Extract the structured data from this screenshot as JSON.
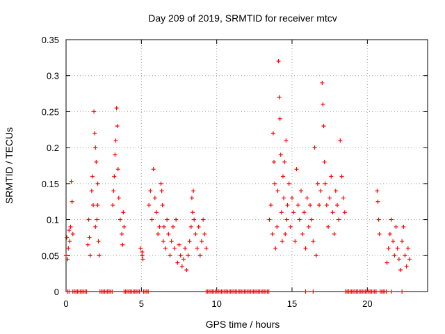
{
  "chart_data": {
    "type": "scatter",
    "title": "Day 209 of 2019, SRMTID for receiver mtcv",
    "xlabel": "GPS time / hours",
    "ylabel": "SRMTID / TECUs",
    "xlim": [
      0,
      24
    ],
    "ylim": [
      0,
      0.35
    ],
    "x_ticks": [
      0,
      5,
      10,
      15,
      20
    ],
    "y_ticks": [
      0,
      0.05,
      0.1,
      0.15,
      0.2,
      0.25,
      0.3,
      0.35
    ],
    "grid": "dotted",
    "marker": "+",
    "color": "#ff0000",
    "series": [
      {
        "name": "mtcv",
        "points": [
          [
            0.0,
            0.05
          ],
          [
            0.05,
            0.075
          ],
          [
            0.1,
            0.045
          ],
          [
            0.15,
            0.06
          ],
          [
            0.2,
            0.085
          ],
          [
            0.25,
            0.07
          ],
          [
            0.3,
            0.09
          ],
          [
            0.35,
            0.153
          ],
          [
            0.4,
            0.125
          ],
          [
            0.45,
            0.08
          ],
          [
            1.45,
            0.065
          ],
          [
            1.5,
            0.1
          ],
          [
            1.55,
            0.075
          ],
          [
            1.6,
            0.05
          ],
          [
            1.7,
            0.14
          ],
          [
            1.75,
            0.16
          ],
          [
            1.8,
            0.12
          ],
          [
            1.85,
            0.25
          ],
          [
            1.9,
            0.22
          ],
          [
            1.95,
            0.2
          ],
          [
            2.0,
            0.18
          ],
          [
            2.05,
            0.1
          ],
          [
            2.1,
            0.15
          ],
          [
            2.15,
            0.07
          ],
          [
            2.2,
            0.05
          ],
          [
            2.1,
            0.12
          ],
          [
            1.95,
            0.09
          ],
          [
            3.1,
            0.12
          ],
          [
            3.15,
            0.14
          ],
          [
            3.2,
            0.16
          ],
          [
            3.25,
            0.19
          ],
          [
            3.3,
            0.21
          ],
          [
            3.35,
            0.255
          ],
          [
            3.4,
            0.23
          ],
          [
            3.45,
            0.17
          ],
          [
            3.5,
            0.13
          ],
          [
            3.6,
            0.1
          ],
          [
            3.7,
            0.08
          ],
          [
            3.75,
            0.065
          ],
          [
            3.8,
            0.11
          ],
          [
            3.85,
            0.09
          ],
          [
            4.95,
            0.06
          ],
          [
            5.05,
            0.05
          ],
          [
            5.1,
            0.045
          ],
          [
            5.05,
            0.055
          ],
          [
            5.5,
            0.12
          ],
          [
            5.6,
            0.14
          ],
          [
            5.7,
            0.1
          ],
          [
            5.8,
            0.17
          ],
          [
            5.9,
            0.13
          ],
          [
            6.0,
            0.11
          ],
          [
            6.1,
            0.08
          ],
          [
            6.2,
            0.09
          ],
          [
            6.3,
            0.15
          ],
          [
            6.35,
            0.14
          ],
          [
            6.4,
            0.12
          ],
          [
            6.45,
            0.07
          ],
          [
            6.5,
            0.09
          ],
          [
            6.6,
            0.06
          ],
          [
            6.7,
            0.1
          ],
          [
            6.8,
            0.08
          ],
          [
            6.9,
            0.05
          ],
          [
            7.0,
            0.07
          ],
          [
            7.1,
            0.09
          ],
          [
            7.2,
            0.06
          ],
          [
            7.3,
            0.1
          ],
          [
            7.4,
            0.04
          ],
          [
            7.5,
            0.065
          ],
          [
            7.6,
            0.05
          ],
          [
            7.7,
            0.035
          ],
          [
            7.8,
            0.045
          ],
          [
            7.9,
            0.06
          ],
          [
            8.0,
            0.03
          ],
          [
            8.1,
            0.05
          ],
          [
            8.2,
            0.07
          ],
          [
            8.3,
            0.09
          ],
          [
            8.35,
            0.13
          ],
          [
            8.4,
            0.11
          ],
          [
            8.45,
            0.14
          ],
          [
            8.5,
            0.1
          ],
          [
            8.6,
            0.08
          ],
          [
            8.7,
            0.06
          ],
          [
            8.8,
            0.09
          ],
          [
            8.9,
            0.05
          ],
          [
            9.0,
            0.07
          ],
          [
            9.1,
            0.1
          ],
          [
            9.2,
            0.08
          ],
          [
            9.3,
            0.06
          ],
          [
            13.5,
            0.1
          ],
          [
            13.6,
            0.12
          ],
          [
            13.7,
            0.08
          ],
          [
            13.75,
            0.22
          ],
          [
            13.8,
            0.18
          ],
          [
            13.85,
            0.15
          ],
          [
            13.9,
            0.06
          ],
          [
            14.0,
            0.09
          ],
          [
            14.05,
            0.14
          ],
          [
            14.1,
            0.32
          ],
          [
            14.15,
            0.27
          ],
          [
            14.2,
            0.24
          ],
          [
            14.25,
            0.19
          ],
          [
            14.3,
            0.11
          ],
          [
            14.35,
            0.07
          ],
          [
            14.4,
            0.16
          ],
          [
            14.45,
            0.13
          ],
          [
            14.5,
            0.18
          ],
          [
            14.55,
            0.08
          ],
          [
            14.6,
            0.21
          ],
          [
            14.65,
            0.1
          ],
          [
            14.7,
            0.12
          ],
          [
            14.8,
            0.15
          ],
          [
            14.9,
            0.09
          ],
          [
            15.0,
            0.13
          ],
          [
            15.1,
            0.11
          ],
          [
            15.2,
            0.07
          ],
          [
            15.3,
            0.17
          ],
          [
            15.4,
            0.12
          ],
          [
            15.5,
            0.1
          ],
          [
            15.6,
            0.14
          ],
          [
            15.7,
            0.08
          ],
          [
            15.8,
            0.11
          ],
          [
            15.9,
            0.06
          ],
          [
            16.0,
            0.13
          ],
          [
            16.1,
            0.09
          ],
          [
            16.2,
            0.12
          ],
          [
            16.3,
            0.1
          ],
          [
            16.4,
            0.07
          ],
          [
            16.5,
            0.2
          ],
          [
            16.6,
            0.05
          ],
          [
            16.7,
            0.15
          ],
          [
            16.8,
            0.12
          ],
          [
            16.9,
            0.14
          ],
          [
            17.0,
            0.29
          ],
          [
            17.05,
            0.26
          ],
          [
            17.1,
            0.23
          ],
          [
            17.15,
            0.18
          ],
          [
            17.2,
            0.15
          ],
          [
            17.3,
            0.12
          ],
          [
            17.4,
            0.09
          ],
          [
            17.5,
            0.13
          ],
          [
            17.6,
            0.16
          ],
          [
            17.7,
            0.11
          ],
          [
            17.8,
            0.08
          ],
          [
            17.9,
            0.14
          ],
          [
            18.0,
            0.12
          ],
          [
            18.1,
            0.1
          ],
          [
            18.2,
            0.21
          ],
          [
            18.3,
            0.16
          ],
          [
            18.4,
            0.13
          ],
          [
            18.5,
            0.11
          ],
          [
            20.65,
            0.14
          ],
          [
            20.7,
            0.125
          ],
          [
            20.75,
            0.1
          ],
          [
            20.8,
            0.08
          ],
          [
            21.3,
            0.04
          ],
          [
            21.4,
            0.06
          ],
          [
            21.5,
            0.08
          ],
          [
            21.6,
            0.1
          ],
          [
            21.7,
            0.07
          ],
          [
            21.8,
            0.05
          ],
          [
            21.9,
            0.09
          ],
          [
            22.0,
            0.06
          ],
          [
            22.1,
            0.045
          ],
          [
            22.2,
            0.03
          ],
          [
            22.3,
            0.07
          ],
          [
            22.4,
            0.09
          ],
          [
            22.5,
            0.05
          ],
          [
            22.6,
            0.035
          ],
          [
            22.7,
            0.06
          ],
          [
            22.8,
            0.045
          ]
        ]
      }
    ],
    "zero_intervals": [
      [
        0.1,
        0.25
      ],
      [
        0.45,
        1.45
      ],
      [
        2.25,
        3.1
      ],
      [
        3.85,
        4.95
      ],
      [
        5.15,
        5.5
      ],
      [
        9.3,
        13.5
      ],
      [
        15.9,
        16.0
      ],
      [
        16.4,
        16.5
      ],
      [
        18.55,
        20.65
      ],
      [
        20.85,
        21.3
      ],
      [
        21.6,
        21.7
      ],
      [
        22.3,
        22.4
      ]
    ]
  }
}
